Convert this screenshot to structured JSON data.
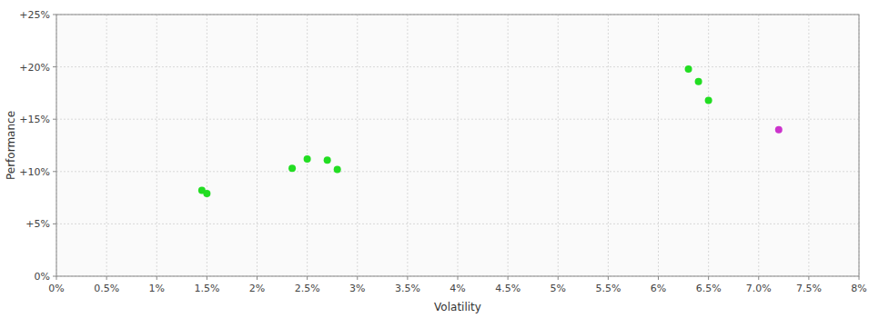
{
  "chart_data": {
    "type": "scatter",
    "xlabel": "Volatility",
    "ylabel": "Performance",
    "xlim": [
      0.0,
      0.08
    ],
    "ylim": [
      0.0,
      0.25
    ],
    "xticks": [
      {
        "value": 0.0,
        "label": "0%"
      },
      {
        "value": 0.005,
        "label": "0.5%"
      },
      {
        "value": 0.01,
        "label": "1%"
      },
      {
        "value": 0.015,
        "label": "1.5%"
      },
      {
        "value": 0.02,
        "label": "2%"
      },
      {
        "value": 0.025,
        "label": "2.5%"
      },
      {
        "value": 0.03,
        "label": "3%"
      },
      {
        "value": 0.035,
        "label": "3.5%"
      },
      {
        "value": 0.04,
        "label": "4%"
      },
      {
        "value": 0.045,
        "label": "4.5%"
      },
      {
        "value": 0.05,
        "label": "5%"
      },
      {
        "value": 0.055,
        "label": "5.5%"
      },
      {
        "value": 0.06,
        "label": "6%"
      },
      {
        "value": 0.065,
        "label": "6.5%"
      },
      {
        "value": 0.07,
        "label": "7.0%"
      },
      {
        "value": 0.075,
        "label": "7.5%"
      },
      {
        "value": 0.08,
        "label": "8%"
      }
    ],
    "yticks": [
      {
        "value": 0.0,
        "label": "0%"
      },
      {
        "value": 0.05,
        "label": "+5%"
      },
      {
        "value": 0.1,
        "label": "+10%"
      },
      {
        "value": 0.15,
        "label": "+15%"
      },
      {
        "value": 0.2,
        "label": "+20%"
      },
      {
        "value": 0.25,
        "label": "+25%"
      }
    ],
    "grid": true,
    "series": [
      {
        "color": "#22dd22",
        "x": [
          0.0145,
          0.015,
          0.0235,
          0.025,
          0.027,
          0.028,
          0.063,
          0.064,
          0.065
        ],
        "values": [
          0.082,
          0.079,
          0.103,
          0.112,
          0.111,
          0.102,
          0.198,
          0.186,
          0.168
        ]
      },
      {
        "color": "#cc33cc",
        "x": [
          0.072
        ],
        "values": [
          0.14
        ]
      }
    ]
  }
}
